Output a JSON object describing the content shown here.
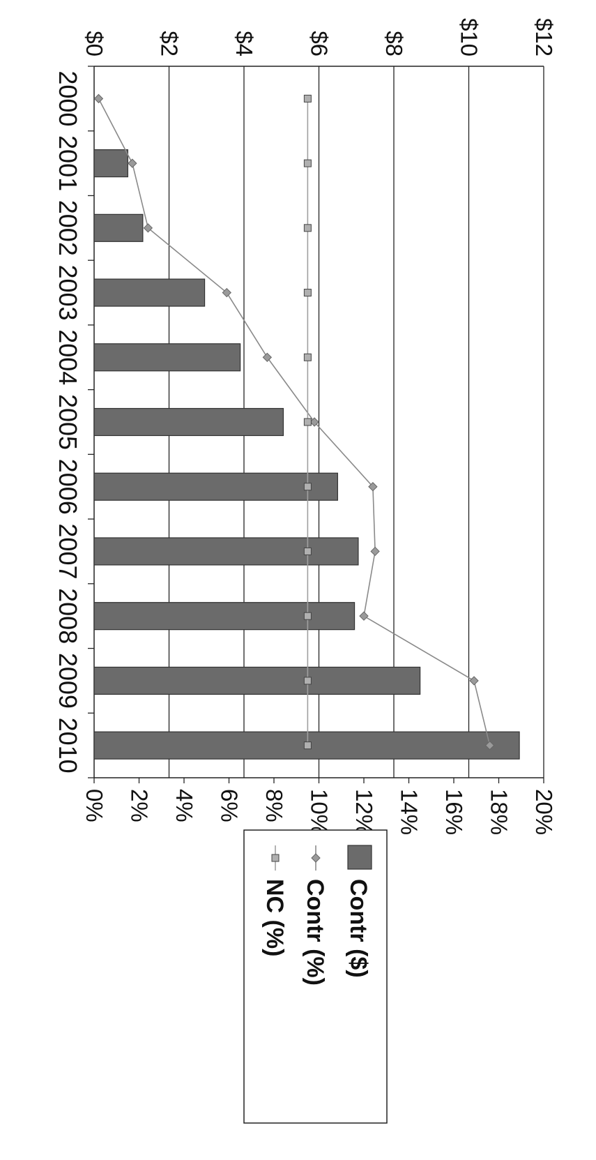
{
  "chart_data": {
    "type": "bar",
    "orientation": "rotated 90° clockwise; categories run top-to-bottom",
    "categories": [
      "2000",
      "2001",
      "2002",
      "2003",
      "2004",
      "2005",
      "2006",
      "2007",
      "2008",
      "2009",
      "2010"
    ],
    "series": [
      {
        "name": "Contr ($)",
        "type": "bar",
        "axis": "left_dollars",
        "values": [
          0,
          0.9,
          1.3,
          2.95,
          3.9,
          5.05,
          6.5,
          7.05,
          6.95,
          8.7,
          11.35
        ]
      },
      {
        "name": "Contr (%)",
        "type": "line",
        "axis": "right_percent",
        "marker": "diamond",
        "values": [
          0.2,
          1.7,
          2.4,
          5.9,
          7.7,
          9.8,
          12.4,
          12.5,
          12.0,
          16.9,
          17.6
        ]
      },
      {
        "name": "NC (%)",
        "type": "line",
        "axis": "right_percent",
        "marker": "square",
        "values": [
          9.5,
          9.5,
          9.5,
          9.5,
          9.5,
          9.5,
          9.5,
          9.5,
          9.5,
          9.5,
          9.5
        ]
      }
    ],
    "dollar_axis": {
      "min": 0,
      "max": 12,
      "ticks": [
        "$0",
        "$2",
        "$4",
        "$6",
        "$8",
        "$10",
        "$12"
      ]
    },
    "percent_axis": {
      "min": 0,
      "max": 20,
      "ticks": [
        "0%",
        "2%",
        "4%",
        "6%",
        "8%",
        "10%",
        "12%",
        "14%",
        "16%",
        "18%",
        "20%"
      ]
    },
    "gridlines": true,
    "legend": {
      "placement": "bottom",
      "entries": [
        "Contr ($)",
        "Contr (%)",
        "NC (%)"
      ]
    },
    "colors": {
      "bar": "#6b6b6b",
      "bar_stroke": "#333333",
      "contr_pct_line": "#8a8a8a",
      "nc_line": "#a0a0a0",
      "grid": "#222222"
    }
  }
}
